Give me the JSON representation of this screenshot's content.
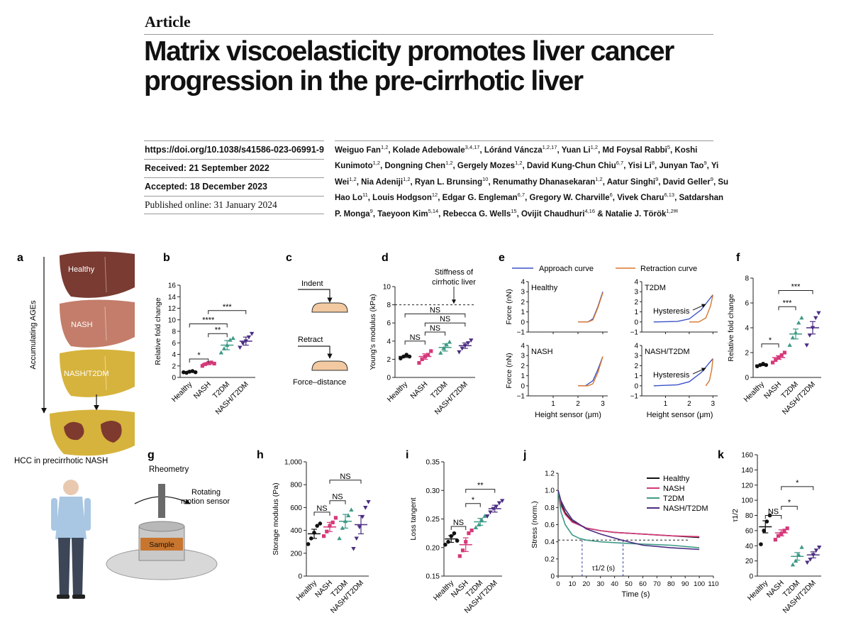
{
  "header": {
    "article_label": "Article",
    "title": "Matrix viscoelasticity promotes liver cancer progression in the pre-cirrhotic liver"
  },
  "meta": {
    "doi": "https://doi.org/10.1038/s41586-023-06991-9",
    "received": "Received: 21 September 2022",
    "accepted": "Accepted: 18 December 2023",
    "published": "Published online: 31 January 2024"
  },
  "authors": [
    {
      "name": "Weiguo Fan",
      "aff": "1,2"
    },
    {
      "name": "Kolade Adebowale",
      "aff": "3,4,17"
    },
    {
      "name": "Lóránd Váncza",
      "aff": "1,2,17"
    },
    {
      "name": "Yuan Li",
      "aff": "1,2"
    },
    {
      "name": "Md Foysal Rabbi",
      "aff": "5"
    },
    {
      "name": "Koshi Kunimoto",
      "aff": "1,2"
    },
    {
      "name": "Dongning Chen",
      "aff": "1,2"
    },
    {
      "name": "Gergely Mozes",
      "aff": "1,2"
    },
    {
      "name": "David Kung-Chun Chiu",
      "aff": "6,7"
    },
    {
      "name": "Yisi Li",
      "aff": "8"
    },
    {
      "name": "Junyan Tao",
      "aff": "9"
    },
    {
      "name": "Yi Wei",
      "aff": "1,2"
    },
    {
      "name": "Nia Adeniji",
      "aff": "1,2"
    },
    {
      "name": "Ryan L. Brunsing",
      "aff": "10"
    },
    {
      "name": "Renumathy Dhanasekaran",
      "aff": "1,2"
    },
    {
      "name": "Aatur Singhi",
      "aff": "9"
    },
    {
      "name": "David Geller",
      "aff": "9"
    },
    {
      "name": "Su Hao Lo",
      "aff": "11"
    },
    {
      "name": "Louis Hodgson",
      "aff": "12"
    },
    {
      "name": "Edgar G. Engleman",
      "aff": "6,7"
    },
    {
      "name": "Gregory W. Charville",
      "aff": "6"
    },
    {
      "name": "Vivek Charu",
      "aff": "6,13"
    },
    {
      "name": "Satdarshan P. Monga",
      "aff": "9"
    },
    {
      "name": "Taeyoon Kim",
      "aff": "5,14"
    },
    {
      "name": "Rebecca G. Wells",
      "aff": "15"
    },
    {
      "name": "Ovijit Chaudhuri",
      "aff": "4,16"
    },
    {
      "name": "Natalie J. Török",
      "aff": "1,2✉"
    }
  ],
  "figure": {
    "panel_letters": [
      "a",
      "b",
      "c",
      "d",
      "e",
      "f",
      "g",
      "h",
      "i",
      "j",
      "k"
    ],
    "groups": [
      "Healthy",
      "NASH",
      "T2DM",
      "NASH/T2DM"
    ],
    "colors": {
      "healthy": "#111111",
      "nash": "#d6387a",
      "t2dm": "#3e9a86",
      "nasht2dm": "#4b2d82",
      "approach": "#3a52c8",
      "retraction": "#d8762e"
    },
    "panel_a": {
      "arrow_label": "Accumulating AGEs",
      "livers": [
        "Healthy",
        "NASH",
        "NASH/T2DM"
      ],
      "caption": "HCC in precirrhotic NASH"
    },
    "panel_c": {
      "indent": "Indent",
      "retract": "Retract",
      "caption": "Force–distance"
    },
    "panel_e": {
      "legend_approach": "Approach curve",
      "legend_retraction": "Retraction curve",
      "subplots": [
        "Healthy",
        "T2DM",
        "NASH",
        "NASH/T2DM"
      ],
      "annotation": "Hysteresis",
      "ylabel": "Force (nN)",
      "xlabel": "Height sensor (μm)",
      "yticks": [
        "4",
        "3",
        "2",
        "1",
        "0",
        "−1"
      ],
      "xticks": [
        "1",
        "2",
        "3"
      ]
    },
    "panel_g": {
      "title": "Rheometry",
      "sensor_label_1": "Rotating",
      "sensor_label_2": "motion sensor",
      "sample": "Sample"
    },
    "panel_j": {
      "x_sub_label": "τ1/2 (s)"
    }
  },
  "chart_data": [
    {
      "panel": "b",
      "type": "scatter",
      "ylabel": "Relative fold change",
      "ylim": [
        0,
        16
      ],
      "yticks": [
        "0",
        "2",
        "4",
        "6",
        "8",
        "10",
        "12",
        "14",
        "16"
      ],
      "categories": [
        "Healthy",
        "NASH",
        "T2DM",
        "NASH/T2DM"
      ],
      "means": [
        1.0,
        2.4,
        5.6,
        6.3
      ],
      "sem": [
        0.1,
        0.2,
        0.8,
        0.7
      ],
      "points": [
        [
          0.9,
          0.8,
          1.0,
          1.1,
          0.9
        ],
        [
          2.0,
          2.3,
          2.5,
          2.6,
          2.4
        ],
        [
          4.3,
          5.0,
          5.6,
          6.5,
          6.8
        ],
        [
          5.2,
          5.9,
          6.3,
          7.0,
          7.6
        ]
      ],
      "brackets": [
        {
          "from": 0,
          "to": 1,
          "y": 3.2,
          "label": "*"
        },
        {
          "from": 1,
          "to": 2,
          "y": 7.6,
          "label": "**"
        },
        {
          "from": 0,
          "to": 2,
          "y": 9.3,
          "label": "****"
        },
        {
          "from": 1,
          "to": 3,
          "y": 11.6,
          "label": "***"
        }
      ]
    },
    {
      "panel": "d",
      "type": "scatter",
      "ylabel": "Young's modulus (kPa)",
      "ylim": [
        0,
        10
      ],
      "yticks": [
        "0",
        "2",
        "4",
        "6",
        "8",
        "10"
      ],
      "categories": [
        "Healthy",
        "NASH",
        "T2DM",
        "NASH/T2DM"
      ],
      "means": [
        2.3,
        2.3,
        3.3,
        3.5
      ],
      "sem": [
        0.1,
        0.3,
        0.4,
        0.3
      ],
      "points": [
        [
          2.1,
          2.3,
          2.5,
          2.3
        ],
        [
          1.6,
          2.0,
          2.3,
          2.5,
          2.9
        ],
        [
          2.7,
          3.2,
          3.6,
          3.9
        ],
        [
          2.8,
          3.2,
          3.5,
          3.8,
          4.1
        ]
      ],
      "reference_line": {
        "y": 8,
        "label_1": "Stiffness of",
        "label_2": "cirrhotic liver"
      },
      "brackets": [
        {
          "from": 0,
          "to": 1,
          "y": 4.0,
          "label": "NS"
        },
        {
          "from": 1,
          "to": 2,
          "y": 5.0,
          "label": "NS"
        },
        {
          "from": 1,
          "to": 3,
          "y": 6.0,
          "label": "NS"
        },
        {
          "from": 0,
          "to": 3,
          "y": 7.0,
          "label": "NS"
        }
      ]
    },
    {
      "panel": "e",
      "type": "line",
      "xlim": [
        0,
        3.2
      ],
      "ylim": [
        -1,
        4
      ],
      "series": [
        {
          "subplot": "Healthy",
          "curve": "approach",
          "x": [
            2.0,
            2.4,
            2.6,
            2.8,
            3.0
          ],
          "y": [
            0,
            0,
            0.3,
            1.5,
            3.0
          ]
        },
        {
          "subplot": "Healthy",
          "curve": "retraction",
          "x": [
            2.0,
            2.4,
            2.6,
            2.8,
            3.0
          ],
          "y": [
            0,
            0,
            0.2,
            1.4,
            2.9
          ]
        },
        {
          "subplot": "T2DM",
          "curve": "approach",
          "x": [
            0.5,
            1.5,
            2.0,
            2.5,
            3.0
          ],
          "y": [
            0,
            0.05,
            0.3,
            1.2,
            2.7
          ]
        },
        {
          "subplot": "T2DM",
          "curve": "retraction",
          "x": [
            2.0,
            2.4,
            2.7,
            2.9,
            3.0
          ],
          "y": [
            0,
            0,
            0.4,
            1.6,
            2.7
          ]
        },
        {
          "subplot": "NASH",
          "curve": "approach",
          "x": [
            2.0,
            2.3,
            2.6,
            2.8,
            3.0
          ],
          "y": [
            0,
            0,
            0.5,
            1.6,
            2.9
          ]
        },
        {
          "subplot": "NASH",
          "curve": "retraction",
          "x": [
            2.0,
            2.4,
            2.6,
            2.8,
            3.0
          ],
          "y": [
            0,
            0,
            0.2,
            1.3,
            2.9
          ]
        },
        {
          "subplot": "NASH/T2DM",
          "curve": "approach",
          "x": [
            0.5,
            1.5,
            2.0,
            2.5,
            3.0
          ],
          "y": [
            0,
            0.1,
            0.4,
            1.3,
            2.7
          ]
        },
        {
          "subplot": "NASH/T2DM",
          "curve": "retraction",
          "x": [
            2.7,
            2.85,
            2.95,
            3.0
          ],
          "y": [
            0,
            0.5,
            1.6,
            2.7
          ]
        }
      ]
    },
    {
      "panel": "f",
      "type": "scatter",
      "ylabel": "Relative fold change",
      "ylim": [
        0,
        8
      ],
      "yticks": [
        "0",
        "2",
        "4",
        "6",
        "8"
      ],
      "categories": [
        "Healthy",
        "NASH",
        "T2DM",
        "NASH/T2DM"
      ],
      "means": [
        1.0,
        1.6,
        3.5,
        4.0
      ],
      "sem": [
        0.05,
        0.15,
        0.4,
        0.5
      ],
      "points": [
        [
          0.9,
          1.0,
          1.1,
          1.0
        ],
        [
          1.2,
          1.4,
          1.6,
          1.8,
          2.0
        ],
        [
          2.6,
          3.2,
          3.6,
          4.4,
          4.8
        ],
        [
          2.6,
          3.4,
          4.0,
          4.8,
          5.2
        ]
      ],
      "brackets": [
        {
          "from": 0,
          "to": 1,
          "y": 2.7,
          "label": "*"
        },
        {
          "from": 1,
          "to": 2,
          "y": 5.7,
          "label": "***"
        },
        {
          "from": 1,
          "to": 3,
          "y": 7.0,
          "label": "***"
        }
      ]
    },
    {
      "panel": "h",
      "type": "scatter",
      "ylabel": "Storage modulus (Pa)",
      "ylim": [
        0,
        1000
      ],
      "yticks": [
        "0",
        "200",
        "400",
        "600",
        "800",
        "1,000"
      ],
      "categories": [
        "Healthy",
        "NASH",
        "T2DM",
        "NASH/T2DM"
      ],
      "means": [
        370,
        430,
        480,
        450
      ],
      "sem": [
        40,
        40,
        60,
        80
      ],
      "points": [
        [
          280,
          330,
          380,
          440,
          460
        ],
        [
          350,
          390,
          440,
          470,
          510
        ],
        [
          330,
          420,
          480,
          530,
          580
        ],
        [
          240,
          330,
          430,
          520,
          600,
          650
        ]
      ],
      "brackets": [
        {
          "from": 0,
          "to": 1,
          "y": 560,
          "label": "NS"
        },
        {
          "from": 1,
          "to": 2,
          "y": 660,
          "label": "NS"
        },
        {
          "from": 1,
          "to": 3,
          "y": 840,
          "label": "NS"
        }
      ]
    },
    {
      "panel": "i",
      "type": "scatter",
      "ylabel": "Loss tangent",
      "ylim": [
        0.15,
        0.35
      ],
      "yticks": [
        "0.15",
        "0.20",
        "0.25",
        "0.30",
        "0.35"
      ],
      "categories": [
        "Healthy",
        "NASH",
        "T2DM",
        "NASH/T2DM"
      ],
      "means": [
        0.215,
        0.205,
        0.245,
        0.268
      ],
      "sem": [
        0.006,
        0.012,
        0.006,
        0.006
      ],
      "points": [
        [
          0.205,
          0.21,
          0.22,
          0.225,
          0.212
        ],
        [
          0.185,
          0.195,
          0.21,
          0.225,
          0.23
        ],
        [
          0.235,
          0.24,
          0.248,
          0.255
        ],
        [
          0.255,
          0.262,
          0.268,
          0.272,
          0.278,
          0.282
        ]
      ],
      "brackets": [
        {
          "from": 0,
          "to": 1,
          "y": 0.237,
          "label": "NS"
        },
        {
          "from": 1,
          "to": 2,
          "y": 0.277,
          "label": "*"
        },
        {
          "from": 1,
          "to": 3,
          "y": 0.302,
          "label": "**"
        }
      ]
    },
    {
      "panel": "j",
      "type": "line",
      "xlabel": "Time (s)",
      "ylabel": "Stress (norm.)",
      "xlim": [
        0,
        110
      ],
      "ylim": [
        0,
        1.2
      ],
      "xticks": [
        "0",
        "10",
        "20",
        "30",
        "40",
        "50",
        "60",
        "70",
        "80",
        "90",
        "100",
        "110"
      ],
      "yticks": [
        "0",
        "0.2",
        "0.4",
        "0.6",
        "0.8",
        "1.0",
        "1.2"
      ],
      "legend": [
        "Healthy",
        "NASH",
        "T2DM",
        "NASH/T2DM"
      ],
      "half_line": 0.42,
      "series": [
        {
          "name": "Healthy",
          "x": [
            0,
            2,
            5,
            10,
            20,
            30,
            40,
            60,
            80,
            100
          ],
          "y": [
            1.0,
            0.85,
            0.74,
            0.64,
            0.56,
            0.53,
            0.51,
            0.49,
            0.47,
            0.45
          ]
        },
        {
          "name": "NASH",
          "x": [
            0,
            2,
            5,
            10,
            20,
            30,
            40,
            60,
            80,
            100
          ],
          "y": [
            1.0,
            0.82,
            0.72,
            0.63,
            0.56,
            0.53,
            0.51,
            0.49,
            0.47,
            0.46
          ]
        },
        {
          "name": "T2DM",
          "x": [
            0,
            2,
            5,
            10,
            15,
            20,
            30,
            50,
            80,
            100
          ],
          "y": [
            1.0,
            0.75,
            0.6,
            0.48,
            0.44,
            0.42,
            0.4,
            0.38,
            0.36,
            0.33
          ]
        },
        {
          "name": "NASH/T2DM",
          "x": [
            0,
            2,
            5,
            10,
            20,
            30,
            45,
            60,
            80,
            100
          ],
          "y": [
            1.0,
            0.88,
            0.78,
            0.66,
            0.55,
            0.49,
            0.42,
            0.36,
            0.33,
            0.31
          ]
        }
      ],
      "t_half_markers": [
        17,
        46
      ]
    },
    {
      "panel": "k",
      "type": "scatter",
      "ylabel": "τ1/2",
      "ylim": [
        0,
        160
      ],
      "yticks": [
        "0",
        "20",
        "40",
        "60",
        "80",
        "100",
        "120",
        "140",
        "160"
      ],
      "categories": [
        "Healthy",
        "NASH",
        "T2DM",
        "NASH/T2DM"
      ],
      "means": [
        65,
        57,
        26,
        28
      ],
      "sem": [
        8,
        4,
        5,
        4
      ],
      "points": [
        [
          42,
          60,
          72,
          80
        ],
        [
          48,
          53,
          56,
          60,
          63
        ],
        [
          15,
          20,
          28,
          38
        ],
        [
          18,
          22,
          28,
          34,
          38
        ]
      ],
      "brackets": [
        {
          "from": 0,
          "to": 1,
          "y": 80,
          "label": "NS"
        },
        {
          "from": 1,
          "to": 2,
          "y": 92,
          "label": "*"
        },
        {
          "from": 1,
          "to": 3,
          "y": 118,
          "label": "*"
        }
      ]
    }
  ]
}
